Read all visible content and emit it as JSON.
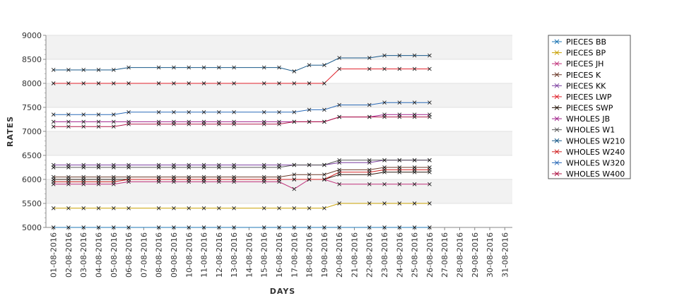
{
  "chart_data": {
    "type": "line",
    "xlabel": "DAYS",
    "ylabel": "RATES",
    "ylim": [
      5000,
      9000
    ],
    "yticks": [
      5000,
      5500,
      6000,
      6500,
      7000,
      7500,
      8000,
      8500,
      9000
    ],
    "grid": true,
    "legend_position": "right",
    "x_dates": [
      "01-08-2016",
      "02-08-2016",
      "03-08-2016",
      "04-08-2016",
      "05-08-2016",
      "06-08-2016",
      "07-08-2016",
      "08-08-2016",
      "09-08-2016",
      "10-08-2016",
      "11-08-2016",
      "12-08-2016",
      "13-08-2016",
      "14-08-2016",
      "15-08-2016",
      "16-08-2016",
      "17-08-2016",
      "18-08-2016",
      "19-08-2016",
      "20-08-2016",
      "21-08-2016",
      "22-08-2016",
      "23-08-2016",
      "24-08-2016",
      "25-08-2016",
      "26-08-2016",
      "27-08-2016",
      "28-08-2016",
      "29-08-2016",
      "30-08-2016",
      "31-08-2016"
    ],
    "data_dates": [
      "01-08-2016",
      "02-08-2016",
      "03-08-2016",
      "04-08-2016",
      "05-08-2016",
      "06-08-2016",
      "08-08-2016",
      "09-08-2016",
      "10-08-2016",
      "11-08-2016",
      "12-08-2016",
      "13-08-2016",
      "15-08-2016",
      "16-08-2016",
      "17-08-2016",
      "18-08-2016",
      "19-08-2016",
      "20-08-2016",
      "22-08-2016",
      "23-08-2016",
      "24-08-2016",
      "25-08-2016",
      "26-08-2016"
    ],
    "series": [
      {
        "name": "PIECES BB",
        "color": "#1f77b4",
        "values": [
          5000,
          5000,
          5000,
          5000,
          5000,
          5000,
          5000,
          5000,
          5000,
          5000,
          5000,
          5000,
          5000,
          5000,
          5000,
          5000,
          5000,
          5000,
          5000,
          5000,
          5000,
          5000,
          5000
        ]
      },
      {
        "name": "PIECES BP",
        "color": "#c8a000",
        "values": [
          5400,
          5400,
          5400,
          5400,
          5400,
          5400,
          5400,
          5400,
          5400,
          5400,
          5400,
          5400,
          5400,
          5400,
          5400,
          5400,
          5400,
          5500,
          5500,
          5500,
          5500,
          5500,
          5500
        ]
      },
      {
        "name": "PIECES JH",
        "color": "#c0307a",
        "values": [
          5900,
          5900,
          5900,
          5900,
          5900,
          5950,
          5950,
          5950,
          5950,
          5950,
          5950,
          5950,
          5950,
          5950,
          5800,
          6000,
          6000,
          5900,
          5900,
          5900,
          5900,
          5900,
          5900
        ]
      },
      {
        "name": "PIECES K",
        "color": "#6b3a2a",
        "values": [
          6050,
          6050,
          6050,
          6050,
          6050,
          6050,
          6050,
          6050,
          6050,
          6050,
          6050,
          6050,
          6050,
          6050,
          6100,
          6100,
          6100,
          6200,
          6200,
          6250,
          6250,
          6250,
          6250
        ]
      },
      {
        "name": "PIECES KK",
        "color": "#7b3fa0",
        "values": [
          6300,
          6300,
          6300,
          6300,
          6300,
          6300,
          6300,
          6300,
          6300,
          6300,
          6300,
          6300,
          6300,
          6300,
          6300,
          6300,
          6300,
          6350,
          6350,
          6400,
          6400,
          6400,
          6400
        ]
      },
      {
        "name": "PIECES LWP",
        "color": "#e0202a",
        "values": [
          8000,
          8000,
          8000,
          8000,
          8000,
          8000,
          8000,
          8000,
          8000,
          8000,
          8000,
          8000,
          8000,
          8000,
          8000,
          8000,
          8000,
          8300,
          8300,
          8300,
          8300,
          8300,
          8300
        ]
      },
      {
        "name": "PIECES SWP",
        "color": "#2a1a10",
        "values": [
          6000,
          6000,
          6000,
          6000,
          6000,
          6000,
          6000,
          6000,
          6000,
          6000,
          6000,
          6000,
          6000,
          6000,
          6000,
          6000,
          6000,
          6100,
          6100,
          6150,
          6150,
          6150,
          6150
        ]
      },
      {
        "name": "WHOLES JB",
        "color": "#a0208a",
        "values": [
          7200,
          7200,
          7200,
          7200,
          7200,
          7200,
          7200,
          7200,
          7200,
          7200,
          7200,
          7200,
          7200,
          7200,
          7200,
          7200,
          7200,
          7300,
          7300,
          7350,
          7350,
          7350,
          7350
        ]
      },
      {
        "name": "WHOLES W1",
        "color": "#555555",
        "values": [
          6250,
          6250,
          6250,
          6250,
          6250,
          6250,
          6250,
          6250,
          6250,
          6250,
          6250,
          6250,
          6250,
          6250,
          6300,
          6300,
          6300,
          6400,
          6400,
          6400,
          6400,
          6400,
          6400
        ]
      },
      {
        "name": "WHOLES W210",
        "color": "#1a5a8a",
        "values": [
          8280,
          8280,
          8280,
          8280,
          8280,
          8330,
          8330,
          8330,
          8330,
          8330,
          8330,
          8330,
          8330,
          8330,
          8250,
          8380,
          8380,
          8530,
          8530,
          8580,
          8580,
          8580,
          8580
        ]
      },
      {
        "name": "WHOLES W240",
        "color": "#d02020",
        "values": [
          5950,
          5950,
          5950,
          5950,
          5950,
          6000,
          6000,
          6000,
          6000,
          6000,
          6000,
          6000,
          6000,
          6000,
          6000,
          6000,
          6000,
          6150,
          6150,
          6200,
          6200,
          6200,
          6200
        ]
      },
      {
        "name": "WHOLES W320",
        "color": "#2a6ab8",
        "values": [
          7350,
          7350,
          7350,
          7350,
          7350,
          7400,
          7400,
          7400,
          7400,
          7400,
          7400,
          7400,
          7400,
          7400,
          7400,
          7450,
          7450,
          7550,
          7550,
          7600,
          7600,
          7600,
          7600
        ]
      },
      {
        "name": "WHOLES W400",
        "color": "#b01a4a",
        "values": [
          7100,
          7100,
          7100,
          7100,
          7100,
          7150,
          7150,
          7150,
          7150,
          7150,
          7150,
          7150,
          7150,
          7150,
          7200,
          7200,
          7200,
          7300,
          7300,
          7300,
          7300,
          7300,
          7300
        ]
      }
    ]
  }
}
